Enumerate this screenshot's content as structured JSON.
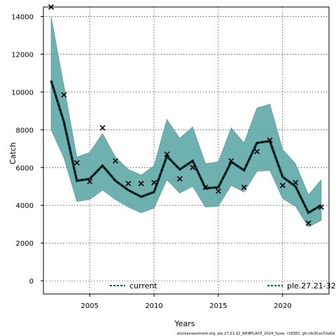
{
  "chart_data": {
    "type": "line",
    "xlabel": "Years",
    "ylabel": "Catch",
    "xlim": [
      2001.4,
      2023.6
    ],
    "ylim": [
      -700,
      14500
    ],
    "x_ticks": [
      2005,
      2010,
      2015,
      2020
    ],
    "y_ticks": [
      0,
      2000,
      4000,
      6000,
      8000,
      10000,
      12000,
      14000
    ],
    "grid": true,
    "x": [
      2002,
      2003,
      2004,
      2005,
      2006,
      2007,
      2008,
      2009,
      2010,
      2011,
      2012,
      2013,
      2014,
      2015,
      2016,
      2017,
      2018,
      2019,
      2020,
      2021,
      2022,
      2023
    ],
    "series": [
      {
        "name": "current",
        "style": "dashed-line",
        "color": "#005b5b",
        "values": [
          10600,
          8400,
          5300,
          5400,
          6100,
          5300,
          4800,
          4450,
          4700,
          6600,
          5900,
          6350,
          4900,
          4950,
          6300,
          5850,
          7300,
          7400,
          5500,
          5000,
          3600,
          4000
        ]
      },
      {
        "name": "ple.27.21-32",
        "style": "crosses",
        "color": "#000000",
        "values": [
          14500,
          9850,
          6250,
          5250,
          8100,
          6350,
          5150,
          5150,
          5200,
          6700,
          5400,
          6000,
          4950,
          4750,
          6350,
          4950,
          6850,
          7450,
          5050,
          5200,
          3050,
          3900
        ]
      }
    ],
    "band": {
      "upper": [
        14000,
        10300,
        6550,
        6800,
        7800,
        6550,
        5900,
        5600,
        6100,
        8550,
        7550,
        8150,
        6200,
        6300,
        8100,
        7300,
        9150,
        9350,
        6950,
        6200,
        4550,
        5350
      ],
      "lower": [
        8000,
        6500,
        4200,
        4300,
        4800,
        4300,
        3900,
        3600,
        3850,
        5350,
        4650,
        5000,
        3900,
        3950,
        5050,
        4700,
        5800,
        5850,
        4350,
        3950,
        2850,
        3200
      ],
      "color": "#5fa8a8"
    },
    "legend_position": "bottom",
    "footer": "stockassessment.org, ple.27.21-32_WKBPLACE_2024_5ysw, r18382, git:c9c81ec53a0d"
  }
}
